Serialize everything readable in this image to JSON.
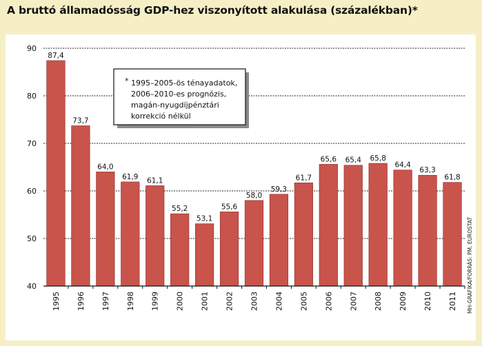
{
  "title": "A bruttó államadósság GDP-hez viszonyított alakulása (százalékban)*",
  "note": {
    "marker": "*",
    "lines": [
      "1995–2005-ös ténayadatok,",
      "2006–2010-es prognózis,",
      "magán-nyugdíjpénztári",
      "korrekció nélkül"
    ]
  },
  "source": "MH-GRAFIKA/FORRÁS: PM, EUROSTAT",
  "chart_data": {
    "type": "bar",
    "categories": [
      "1995",
      "1996",
      "1997",
      "1998",
      "1999",
      "2000",
      "2001",
      "2002",
      "2003",
      "2004",
      "2005",
      "2006",
      "2007",
      "2008",
      "2009",
      "2010",
      "2011"
    ],
    "values": [
      87.4,
      73.7,
      64.0,
      61.9,
      61.1,
      55.2,
      53.1,
      55.6,
      58.0,
      59.3,
      61.7,
      65.6,
      65.4,
      65.8,
      64.4,
      63.3,
      61.8
    ],
    "value_labels": [
      "87,4",
      "73,7",
      "64,0",
      "61,9",
      "61,1",
      "55,2",
      "53,1",
      "55,6",
      "58,0",
      "59,3",
      "61,7",
      "65,6",
      "65,4",
      "65,8",
      "64,4",
      "63,3",
      "61,8"
    ],
    "ylim": [
      40,
      90
    ],
    "yticks": [
      "40",
      "50",
      "60",
      "70",
      "80",
      "90"
    ],
    "title": "A bruttó államadósság GDP-hez viszonyított alakulása (százalékban)*",
    "xlabel": "",
    "ylabel": "",
    "grid": true,
    "colors": {
      "bar": "#c8544c",
      "bar_edge": "#8e2f2a",
      "panel": "#ffffff",
      "background": "#f6efc6",
      "grid": "#222222"
    }
  }
}
